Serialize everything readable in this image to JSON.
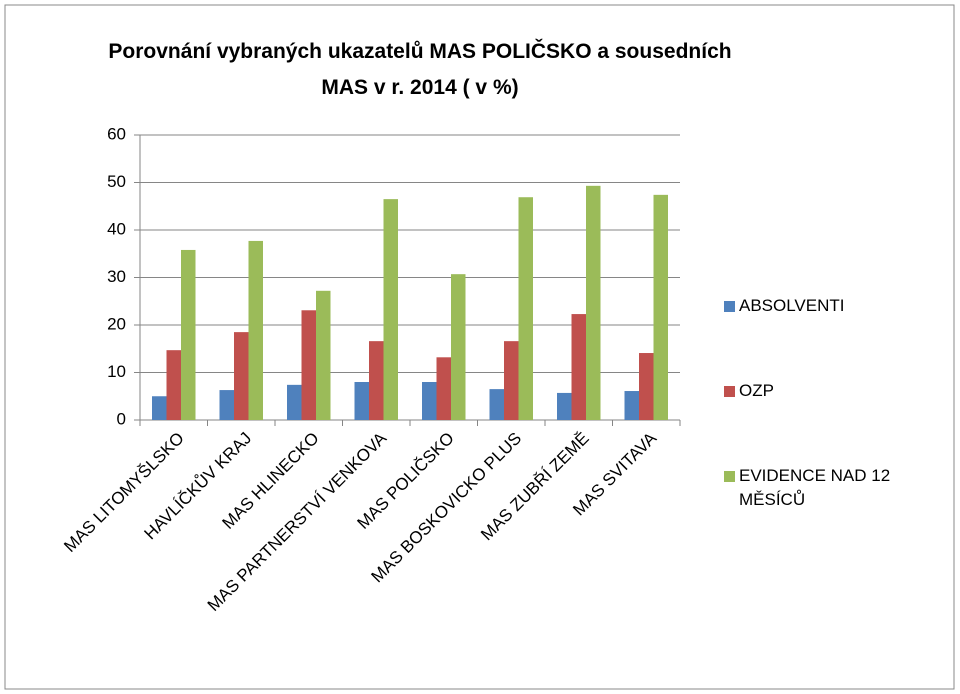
{
  "chart_data": {
    "type": "bar",
    "title": "Porovnání vybraných ukazatelů MAS POLIČSKO a sousedních MAS v r. 2014 ( v %)",
    "categories": [
      "MAS LITOMYŠLSKO",
      "HAVLÍČKŮV KRAJ",
      "MAS HLINECKO",
      "MAS PARTNERSTVÍ VENKOVA",
      "MAS POLIČSKO",
      "MAS BOSKOVICKO PLUS",
      "MAS ZUBŘÍ ZEMĚ",
      "MAS SVITAVA"
    ],
    "series": [
      {
        "name": "ABSOLVENTI",
        "color": "#4f81bd",
        "values": [
          5.0,
          6.3,
          7.4,
          8.0,
          8.0,
          6.5,
          5.7,
          6.1
        ]
      },
      {
        "name": "OZP",
        "color": "#c0504d",
        "values": [
          14.7,
          18.5,
          23.1,
          16.6,
          13.2,
          16.6,
          22.3,
          14.1
        ]
      },
      {
        "name": "EVIDENCE NAD 12 MĚSÍCŮ",
        "color": "#9bbb59",
        "values": [
          35.8,
          37.7,
          27.2,
          46.5,
          30.7,
          46.9,
          49.3,
          47.4
        ]
      }
    ],
    "ylim": [
      0,
      60
    ],
    "yticks": [
      0,
      10,
      20,
      30,
      40,
      50,
      60
    ],
    "grid": true,
    "legend": "right"
  }
}
